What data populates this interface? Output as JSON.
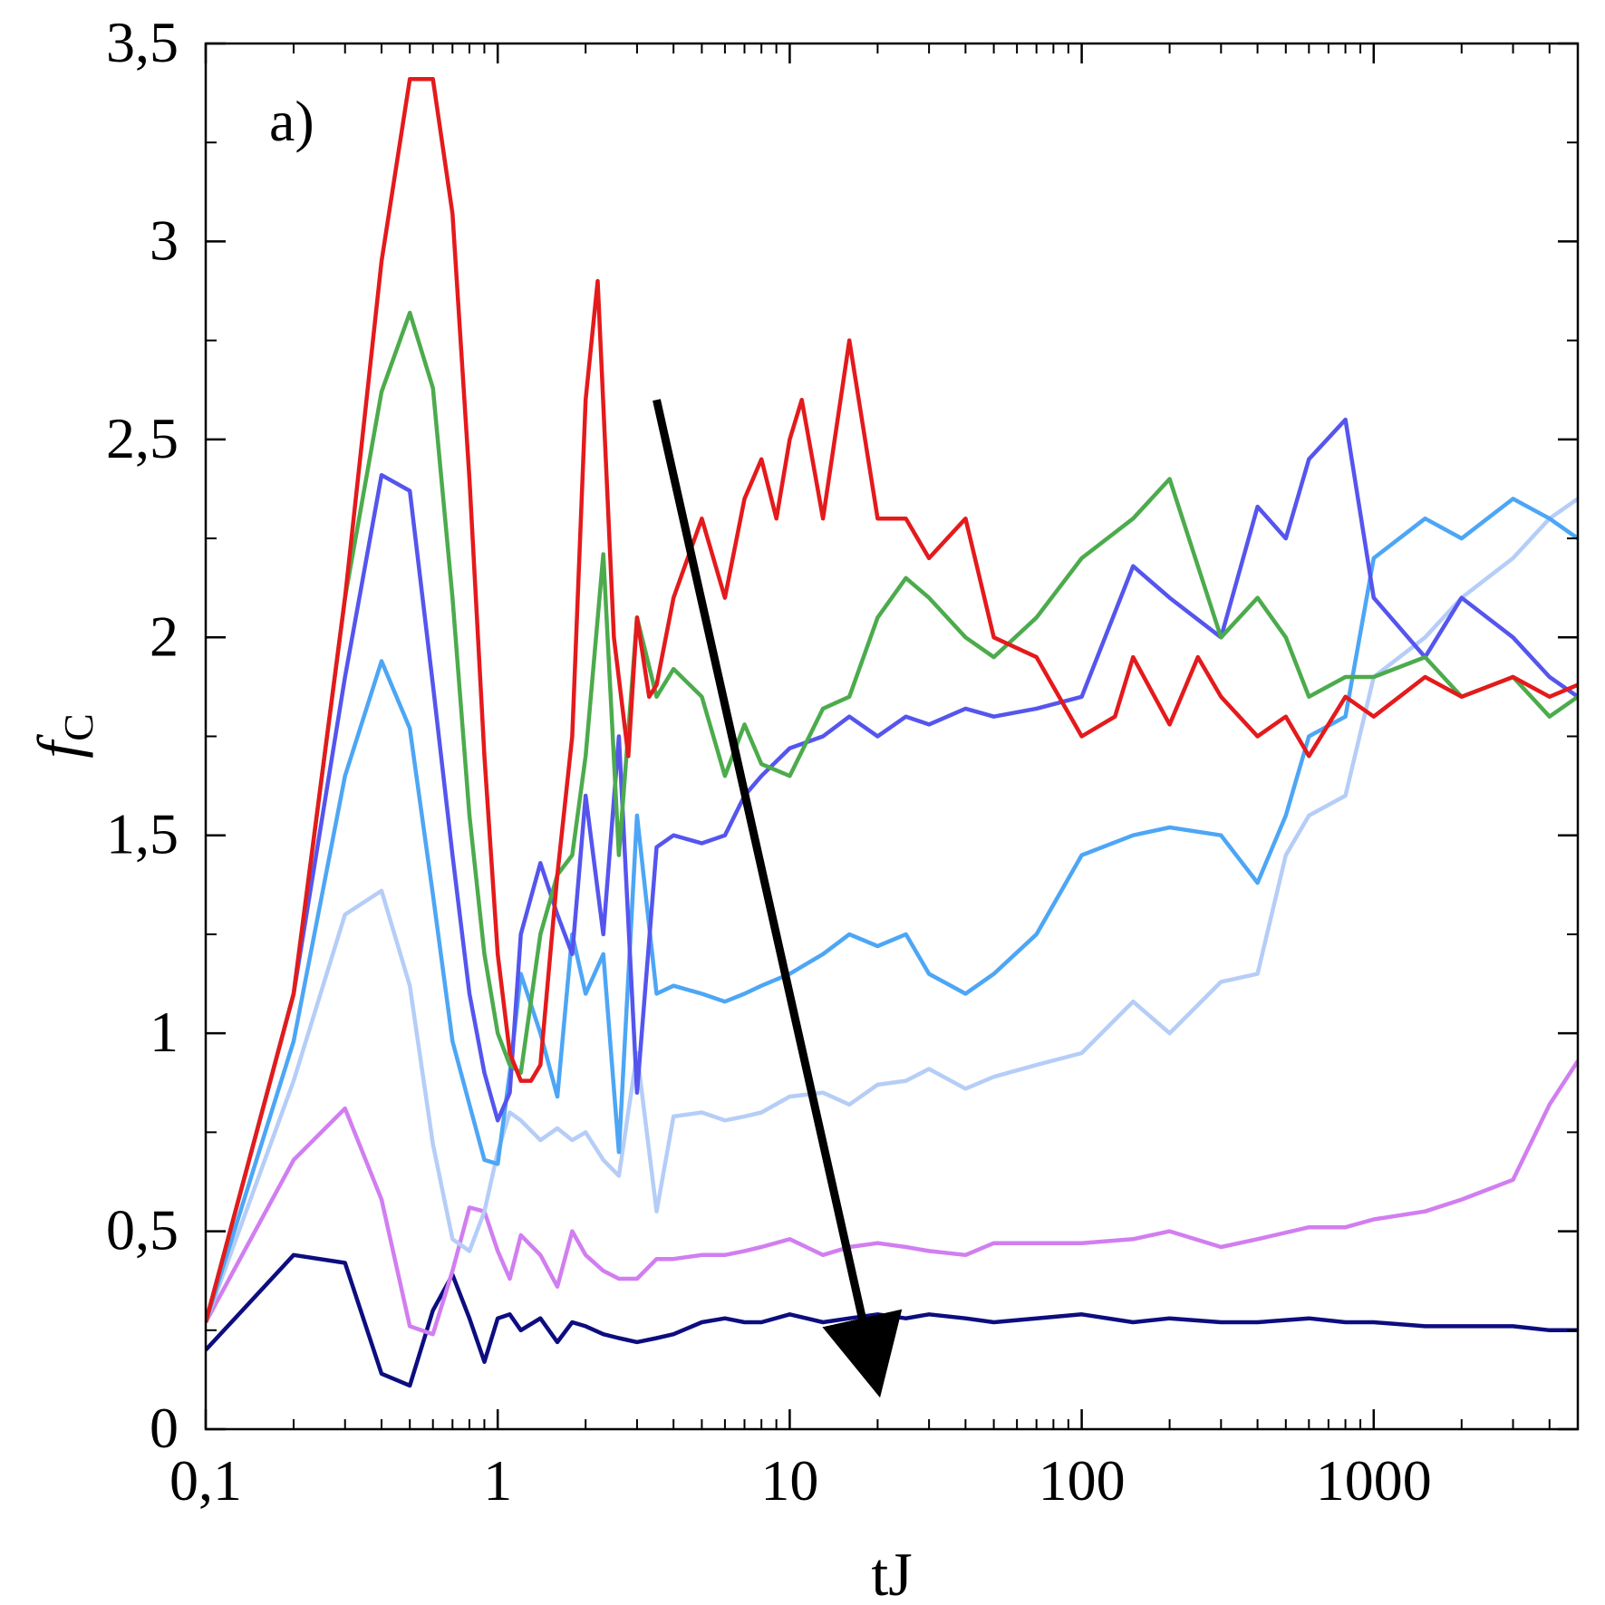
{
  "chart_data": {
    "type": "line",
    "panel_label": "a)",
    "xlabel": "tJ",
    "ylabel_main": "f",
    "ylabel_sub": "C",
    "xscale": "log",
    "xlim": [
      0.1,
      5000
    ],
    "ylim": [
      0,
      3.5
    ],
    "xticks": [
      {
        "value": 0.1,
        "label": "0,1"
      },
      {
        "value": 1,
        "label": "1"
      },
      {
        "value": 10,
        "label": "10"
      },
      {
        "value": 100,
        "label": "100"
      },
      {
        "value": 1000,
        "label": "1000"
      }
    ],
    "yticks": [
      {
        "value": 0,
        "label": "0"
      },
      {
        "value": 0.5,
        "label": "0,5"
      },
      {
        "value": 1,
        "label": "1"
      },
      {
        "value": 1.5,
        "label": "1,5"
      },
      {
        "value": 2,
        "label": "2"
      },
      {
        "value": 2.5,
        "label": "2,5"
      },
      {
        "value": 3,
        "label": "3"
      },
      {
        "value": 3.5,
        "label": "3,5"
      }
    ],
    "grid": false,
    "arrow": {
      "from": [
        3.5,
        2.6
      ],
      "to": [
        19,
        0.18
      ],
      "color": "#000000"
    },
    "series": [
      {
        "color": "#0d0d80",
        "x": [
          0.1,
          0.2,
          0.3,
          0.4,
          0.5,
          0.6,
          0.7,
          0.8,
          0.9,
          1.0,
          1.1,
          1.2,
          1.4,
          1.6,
          1.8,
          2.0,
          2.3,
          2.6,
          3.0,
          3.5,
          4,
          5,
          6,
          7,
          8,
          10,
          13,
          16,
          20,
          25,
          30,
          40,
          50,
          70,
          100,
          150,
          200,
          300,
          400,
          600,
          800,
          1000,
          1500,
          2000,
          3000,
          4000,
          5000
        ],
        "y": [
          0.2,
          0.44,
          0.42,
          0.14,
          0.11,
          0.3,
          0.39,
          0.28,
          0.17,
          0.28,
          0.29,
          0.25,
          0.28,
          0.22,
          0.27,
          0.26,
          0.24,
          0.23,
          0.22,
          0.23,
          0.24,
          0.27,
          0.28,
          0.27,
          0.27,
          0.29,
          0.27,
          0.28,
          0.29,
          0.28,
          0.29,
          0.28,
          0.27,
          0.28,
          0.29,
          0.27,
          0.28,
          0.27,
          0.27,
          0.28,
          0.27,
          0.27,
          0.26,
          0.26,
          0.26,
          0.25,
          0.25
        ]
      },
      {
        "color": "#d17ef0",
        "x": [
          0.1,
          0.2,
          0.3,
          0.4,
          0.5,
          0.6,
          0.7,
          0.8,
          0.9,
          1.0,
          1.1,
          1.2,
          1.4,
          1.6,
          1.8,
          2.0,
          2.3,
          2.6,
          3.0,
          3.5,
          4,
          5,
          6,
          7,
          8,
          10,
          13,
          16,
          20,
          25,
          30,
          40,
          50,
          70,
          100,
          150,
          200,
          300,
          400,
          600,
          800,
          1000,
          1500,
          2000,
          3000,
          4000,
          5000
        ],
        "y": [
          0.27,
          0.68,
          0.81,
          0.58,
          0.26,
          0.24,
          0.4,
          0.56,
          0.55,
          0.45,
          0.38,
          0.49,
          0.44,
          0.36,
          0.5,
          0.44,
          0.4,
          0.38,
          0.38,
          0.43,
          0.43,
          0.44,
          0.44,
          0.45,
          0.46,
          0.48,
          0.44,
          0.46,
          0.47,
          0.46,
          0.45,
          0.44,
          0.47,
          0.47,
          0.47,
          0.48,
          0.5,
          0.46,
          0.48,
          0.51,
          0.51,
          0.53,
          0.55,
          0.58,
          0.63,
          0.82,
          0.93
        ]
      },
      {
        "color": "#b5cdf7",
        "x": [
          0.1,
          0.2,
          0.3,
          0.4,
          0.5,
          0.6,
          0.7,
          0.8,
          0.9,
          1.0,
          1.1,
          1.2,
          1.4,
          1.6,
          1.8,
          2.0,
          2.3,
          2.6,
          3.0,
          3.5,
          4,
          5,
          6,
          7,
          8,
          10,
          13,
          16,
          20,
          25,
          30,
          40,
          50,
          70,
          100,
          150,
          200,
          300,
          400,
          500,
          600,
          800,
          1000,
          1500,
          2000,
          3000,
          4000,
          5000
        ],
        "y": [
          0.27,
          0.88,
          1.3,
          1.36,
          1.12,
          0.72,
          0.48,
          0.45,
          0.55,
          0.7,
          0.8,
          0.78,
          0.73,
          0.76,
          0.73,
          0.75,
          0.68,
          0.64,
          0.95,
          0.55,
          0.79,
          0.8,
          0.78,
          0.79,
          0.8,
          0.84,
          0.85,
          0.82,
          0.87,
          0.88,
          0.91,
          0.86,
          0.89,
          0.92,
          0.95,
          1.08,
          1.0,
          1.13,
          1.15,
          1.45,
          1.55,
          1.6,
          1.9,
          2.0,
          2.1,
          2.2,
          2.3,
          2.35
        ]
      },
      {
        "color": "#4da6f5",
        "x": [
          0.1,
          0.2,
          0.3,
          0.4,
          0.5,
          0.6,
          0.7,
          0.8,
          0.9,
          1.0,
          1.1,
          1.2,
          1.4,
          1.6,
          1.8,
          2.0,
          2.3,
          2.6,
          3.0,
          3.5,
          4,
          5,
          6,
          7,
          8,
          10,
          13,
          16,
          20,
          25,
          30,
          40,
          50,
          70,
          100,
          150,
          200,
          300,
          400,
          500,
          600,
          800,
          1000,
          1500,
          2000,
          3000,
          4000,
          5000
        ],
        "y": [
          0.27,
          0.98,
          1.65,
          1.94,
          1.77,
          1.35,
          0.98,
          0.82,
          0.68,
          0.67,
          0.9,
          1.15,
          1.0,
          0.84,
          1.25,
          1.1,
          1.2,
          0.7,
          1.55,
          1.1,
          1.12,
          1.1,
          1.08,
          1.1,
          1.12,
          1.15,
          1.2,
          1.25,
          1.22,
          1.25,
          1.15,
          1.1,
          1.15,
          1.25,
          1.45,
          1.5,
          1.52,
          1.5,
          1.38,
          1.55,
          1.75,
          1.8,
          2.2,
          2.3,
          2.25,
          2.35,
          2.3,
          2.25
        ]
      },
      {
        "color": "#5555ee",
        "x": [
          0.1,
          0.2,
          0.3,
          0.4,
          0.5,
          0.6,
          0.7,
          0.8,
          0.9,
          1.0,
          1.1,
          1.2,
          1.4,
          1.6,
          1.8,
          2.0,
          2.3,
          2.6,
          3.0,
          3.5,
          4,
          5,
          6,
          7,
          8,
          10,
          13,
          16,
          20,
          25,
          30,
          40,
          50,
          70,
          100,
          150,
          200,
          300,
          400,
          500,
          600,
          800,
          1000,
          1500,
          2000,
          3000,
          4000,
          5000
        ],
        "y": [
          0.27,
          1.1,
          1.9,
          2.41,
          2.37,
          1.88,
          1.45,
          1.1,
          0.9,
          0.78,
          0.85,
          1.25,
          1.43,
          1.3,
          1.2,
          1.6,
          1.25,
          1.75,
          0.85,
          1.47,
          1.5,
          1.48,
          1.5,
          1.6,
          1.65,
          1.72,
          1.75,
          1.8,
          1.75,
          1.8,
          1.78,
          1.82,
          1.8,
          1.82,
          1.85,
          2.18,
          2.1,
          2.0,
          2.33,
          2.25,
          2.45,
          2.55,
          2.1,
          1.95,
          2.1,
          2.0,
          1.9,
          1.85
        ]
      },
      {
        "color": "#4cab4c",
        "x": [
          0.1,
          0.2,
          0.3,
          0.4,
          0.5,
          0.6,
          0.7,
          0.8,
          0.9,
          1.0,
          1.1,
          1.2,
          1.4,
          1.6,
          1.8,
          2.0,
          2.3,
          2.6,
          3.0,
          3.5,
          4,
          5,
          6,
          7,
          8,
          10,
          13,
          16,
          20,
          25,
          30,
          40,
          50,
          70,
          100,
          150,
          200,
          300,
          400,
          500,
          600,
          800,
          1000,
          1500,
          2000,
          3000,
          4000,
          5000
        ],
        "y": [
          0.27,
          1.1,
          2.1,
          2.62,
          2.82,
          2.63,
          2.1,
          1.55,
          1.2,
          1.0,
          0.92,
          0.9,
          1.25,
          1.4,
          1.45,
          1.7,
          2.21,
          1.45,
          2.05,
          1.85,
          1.92,
          1.85,
          1.65,
          1.78,
          1.68,
          1.65,
          1.82,
          1.85,
          2.05,
          2.15,
          2.1,
          2.0,
          1.95,
          2.05,
          2.2,
          2.3,
          2.4,
          2.0,
          2.1,
          2.0,
          1.85,
          1.9,
          1.9,
          1.95,
          1.85,
          1.9,
          1.8,
          1.85
        ]
      },
      {
        "color": "#e41a1c",
        "x": [
          0.1,
          0.2,
          0.3,
          0.4,
          0.5,
          0.6,
          0.7,
          0.8,
          0.9,
          1.0,
          1.1,
          1.2,
          1.3,
          1.4,
          1.6,
          1.8,
          2.0,
          2.2,
          2.5,
          2.8,
          3.0,
          3.3,
          3.5,
          4,
          5,
          6,
          7,
          8,
          9,
          10,
          11,
          13,
          16,
          20,
          25,
          30,
          40,
          50,
          70,
          100,
          130,
          150,
          200,
          250,
          300,
          400,
          500,
          600,
          800,
          1000,
          1500,
          2000,
          3000,
          4000,
          5000
        ],
        "y": [
          0.27,
          1.1,
          2.1,
          2.95,
          3.41,
          3.41,
          3.07,
          2.4,
          1.7,
          1.2,
          0.95,
          0.88,
          0.88,
          0.92,
          1.4,
          1.75,
          2.6,
          2.9,
          2.0,
          1.7,
          2.05,
          1.85,
          1.88,
          2.1,
          2.3,
          2.1,
          2.35,
          2.45,
          2.3,
          2.5,
          2.6,
          2.3,
          2.75,
          2.3,
          2.3,
          2.2,
          2.3,
          2.0,
          1.95,
          1.75,
          1.8,
          1.95,
          1.78,
          1.95,
          1.85,
          1.75,
          1.8,
          1.7,
          1.85,
          1.8,
          1.9,
          1.85,
          1.9,
          1.85,
          1.88
        ]
      }
    ]
  }
}
